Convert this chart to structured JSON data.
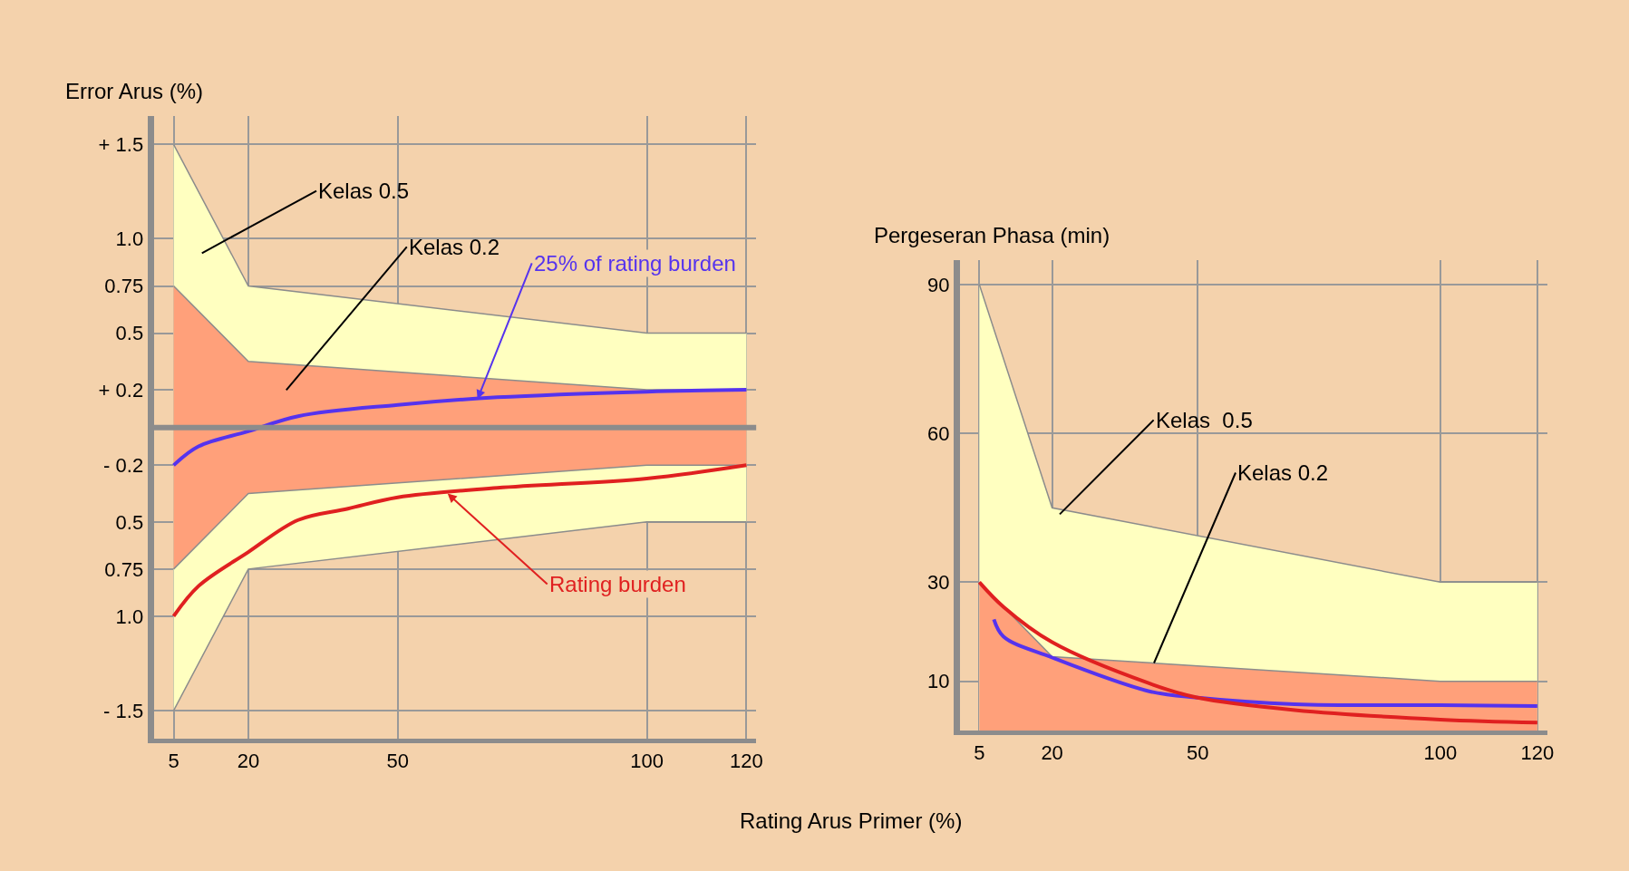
{
  "chart_data": [
    {
      "type": "area",
      "ylabel": "Error Arus (%)",
      "xlabel": "Rating Arus Primer (%)",
      "xlim": [
        1,
        122
      ],
      "xticks": [
        5,
        20,
        50,
        100,
        120
      ],
      "ylim": [
        -1.65,
        1.65
      ],
      "yticks": [
        {
          "value": 1.5,
          "label": "+ 1.5"
        },
        {
          "value": 1.0,
          "label": "1.0"
        },
        0.75,
        0.5,
        {
          "value": 0.2,
          "label": "+ 0.2"
        },
        {
          "value": -0.2,
          "label": "- 0.2"
        },
        {
          "value": -0.5,
          "label": "0.5"
        },
        {
          "value": -0.75,
          "label": "0.75"
        },
        {
          "value": -1.0,
          "label": "1.0"
        },
        {
          "value": -1.5,
          "label": "- 1.5"
        }
      ],
      "grid": true,
      "series": [
        {
          "color": "#ffffc0",
          "x": [
            5,
            20,
            100,
            120
          ],
          "values": [
            1.5,
            0.75,
            0.5,
            0.5
          ]
        },
        {
          "color": "#ffffc0",
          "x": [
            5,
            20,
            100,
            120
          ],
          "values": [
            -1.5,
            -0.75,
            -0.5,
            -0.5
          ]
        },
        {
          "color": "#ffa07a",
          "x": [
            5,
            20,
            100,
            120
          ],
          "values": [
            0.75,
            0.35,
            0.2,
            0.2
          ]
        },
        {
          "color": "#ffa07a",
          "x": [
            5,
            20,
            100,
            120
          ],
          "values": [
            -0.75,
            -0.35,
            -0.2,
            -0.2
          ]
        },
        {
          "type": "line",
          "color": "#5533ee",
          "x": [
            5,
            10,
            20,
            30,
            50,
            70,
            100,
            120
          ],
          "values": [
            -0.2,
            -0.1,
            -0.02,
            0.06,
            0.12,
            0.16,
            0.19,
            0.2
          ]
        },
        {
          "type": "line",
          "color": "#e02020",
          "x": [
            5,
            10,
            20,
            30,
            40,
            50,
            70,
            100,
            120
          ],
          "values": [
            -1.0,
            -0.84,
            -0.66,
            -0.49,
            -0.43,
            -0.37,
            -0.32,
            -0.27,
            -0.2
          ]
        }
      ],
      "ref_lines": [
        {
          "axis": "y",
          "value": 0,
          "color": "#8c8c8c"
        }
      ],
      "annotations": [
        "Kelas 0.5",
        "Kelas 0.2",
        {
          "text": "25% of rating burden",
          "x": 66,
          "y": 0.15
        },
        {
          "text": "Rating burden",
          "x": 60,
          "y": -0.35
        }
      ]
    },
    {
      "type": "area",
      "ylabel": "Pergeseran Phasa (min)",
      "xlim": [
        1,
        122
      ],
      "xticks": [
        5,
        20,
        50,
        100,
        120
      ],
      "ylim": [
        0,
        95
      ],
      "yticks": [
        10,
        30,
        60,
        90
      ],
      "grid": true,
      "series": [
        {
          "color": "#ffffc0",
          "x": [
            5,
            20,
            100,
            120
          ],
          "values": [
            90,
            45,
            30,
            30
          ]
        },
        {
          "color": "#ffa07a",
          "x": [
            5,
            20,
            100,
            120
          ],
          "values": [
            30,
            15,
            10,
            10
          ]
        },
        {
          "type": "line",
          "color": "#5533ee",
          "x": [
            8,
            10,
            20,
            40,
            50,
            70,
            100,
            120
          ],
          "values": [
            22.5,
            19,
            14.8,
            8,
            6.7,
            5.4,
            5.2,
            5
          ]
        },
        {
          "type": "line",
          "color": "#e02020",
          "x": [
            5,
            10,
            20,
            40,
            50,
            70,
            100,
            120
          ],
          "values": [
            30,
            25,
            17.9,
            9.6,
            6.7,
            4.2,
            2.3,
            1.7
          ]
        }
      ],
      "annotations": [
        "Kelas  0.5",
        {
          "text": "Kelas 0.2",
          "x": 41,
          "y": 13.7
        }
      ]
    }
  ]
}
